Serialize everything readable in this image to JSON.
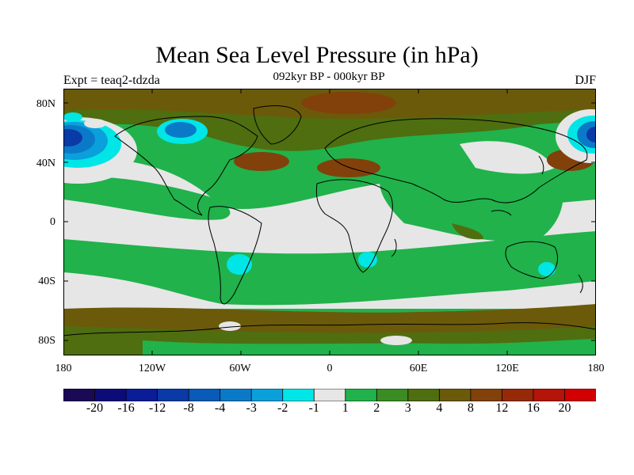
{
  "title": "Mean Sea Level Pressure (in hPa)",
  "experiment": "Expt = teaq2-tdzda",
  "period": "092kyr BP - 000kyr BP",
  "season": "DJF",
  "lat_labels": [
    "80N",
    "40N",
    "0",
    "40S",
    "80S"
  ],
  "lon_labels": [
    "180",
    "120W",
    "60W",
    "0",
    "60E",
    "120E",
    "180"
  ],
  "colorbar": {
    "colors": [
      "#1a0a55",
      "#0c0c78",
      "#0a1c96",
      "#0a3aa6",
      "#0a5ab8",
      "#0a7ac8",
      "#0aa0dc",
      "#00e6e6",
      "#e6e6e6",
      "#21b24b",
      "#3a8c23",
      "#4f6e10",
      "#6b5a0a",
      "#82410a",
      "#962a08",
      "#b4140a",
      "#d20000"
    ],
    "tick_labels": [
      "-20",
      "-16",
      "-12",
      "-8",
      "-4",
      "-3",
      "-2",
      "-1",
      "1",
      "2",
      "3",
      "4",
      "8",
      "12",
      "16",
      "20"
    ]
  },
  "map_colors": {
    "neutral": "#e6e6e6",
    "green": "#21b24b",
    "olive": "#4f6e10",
    "brown": "#6b5a0a",
    "darkbrown": "#82410a",
    "cyan": "#00e6e6",
    "lightblue": "#0aa0dc",
    "blue": "#0a7ac8",
    "darkblue": "#0a3aa6"
  }
}
